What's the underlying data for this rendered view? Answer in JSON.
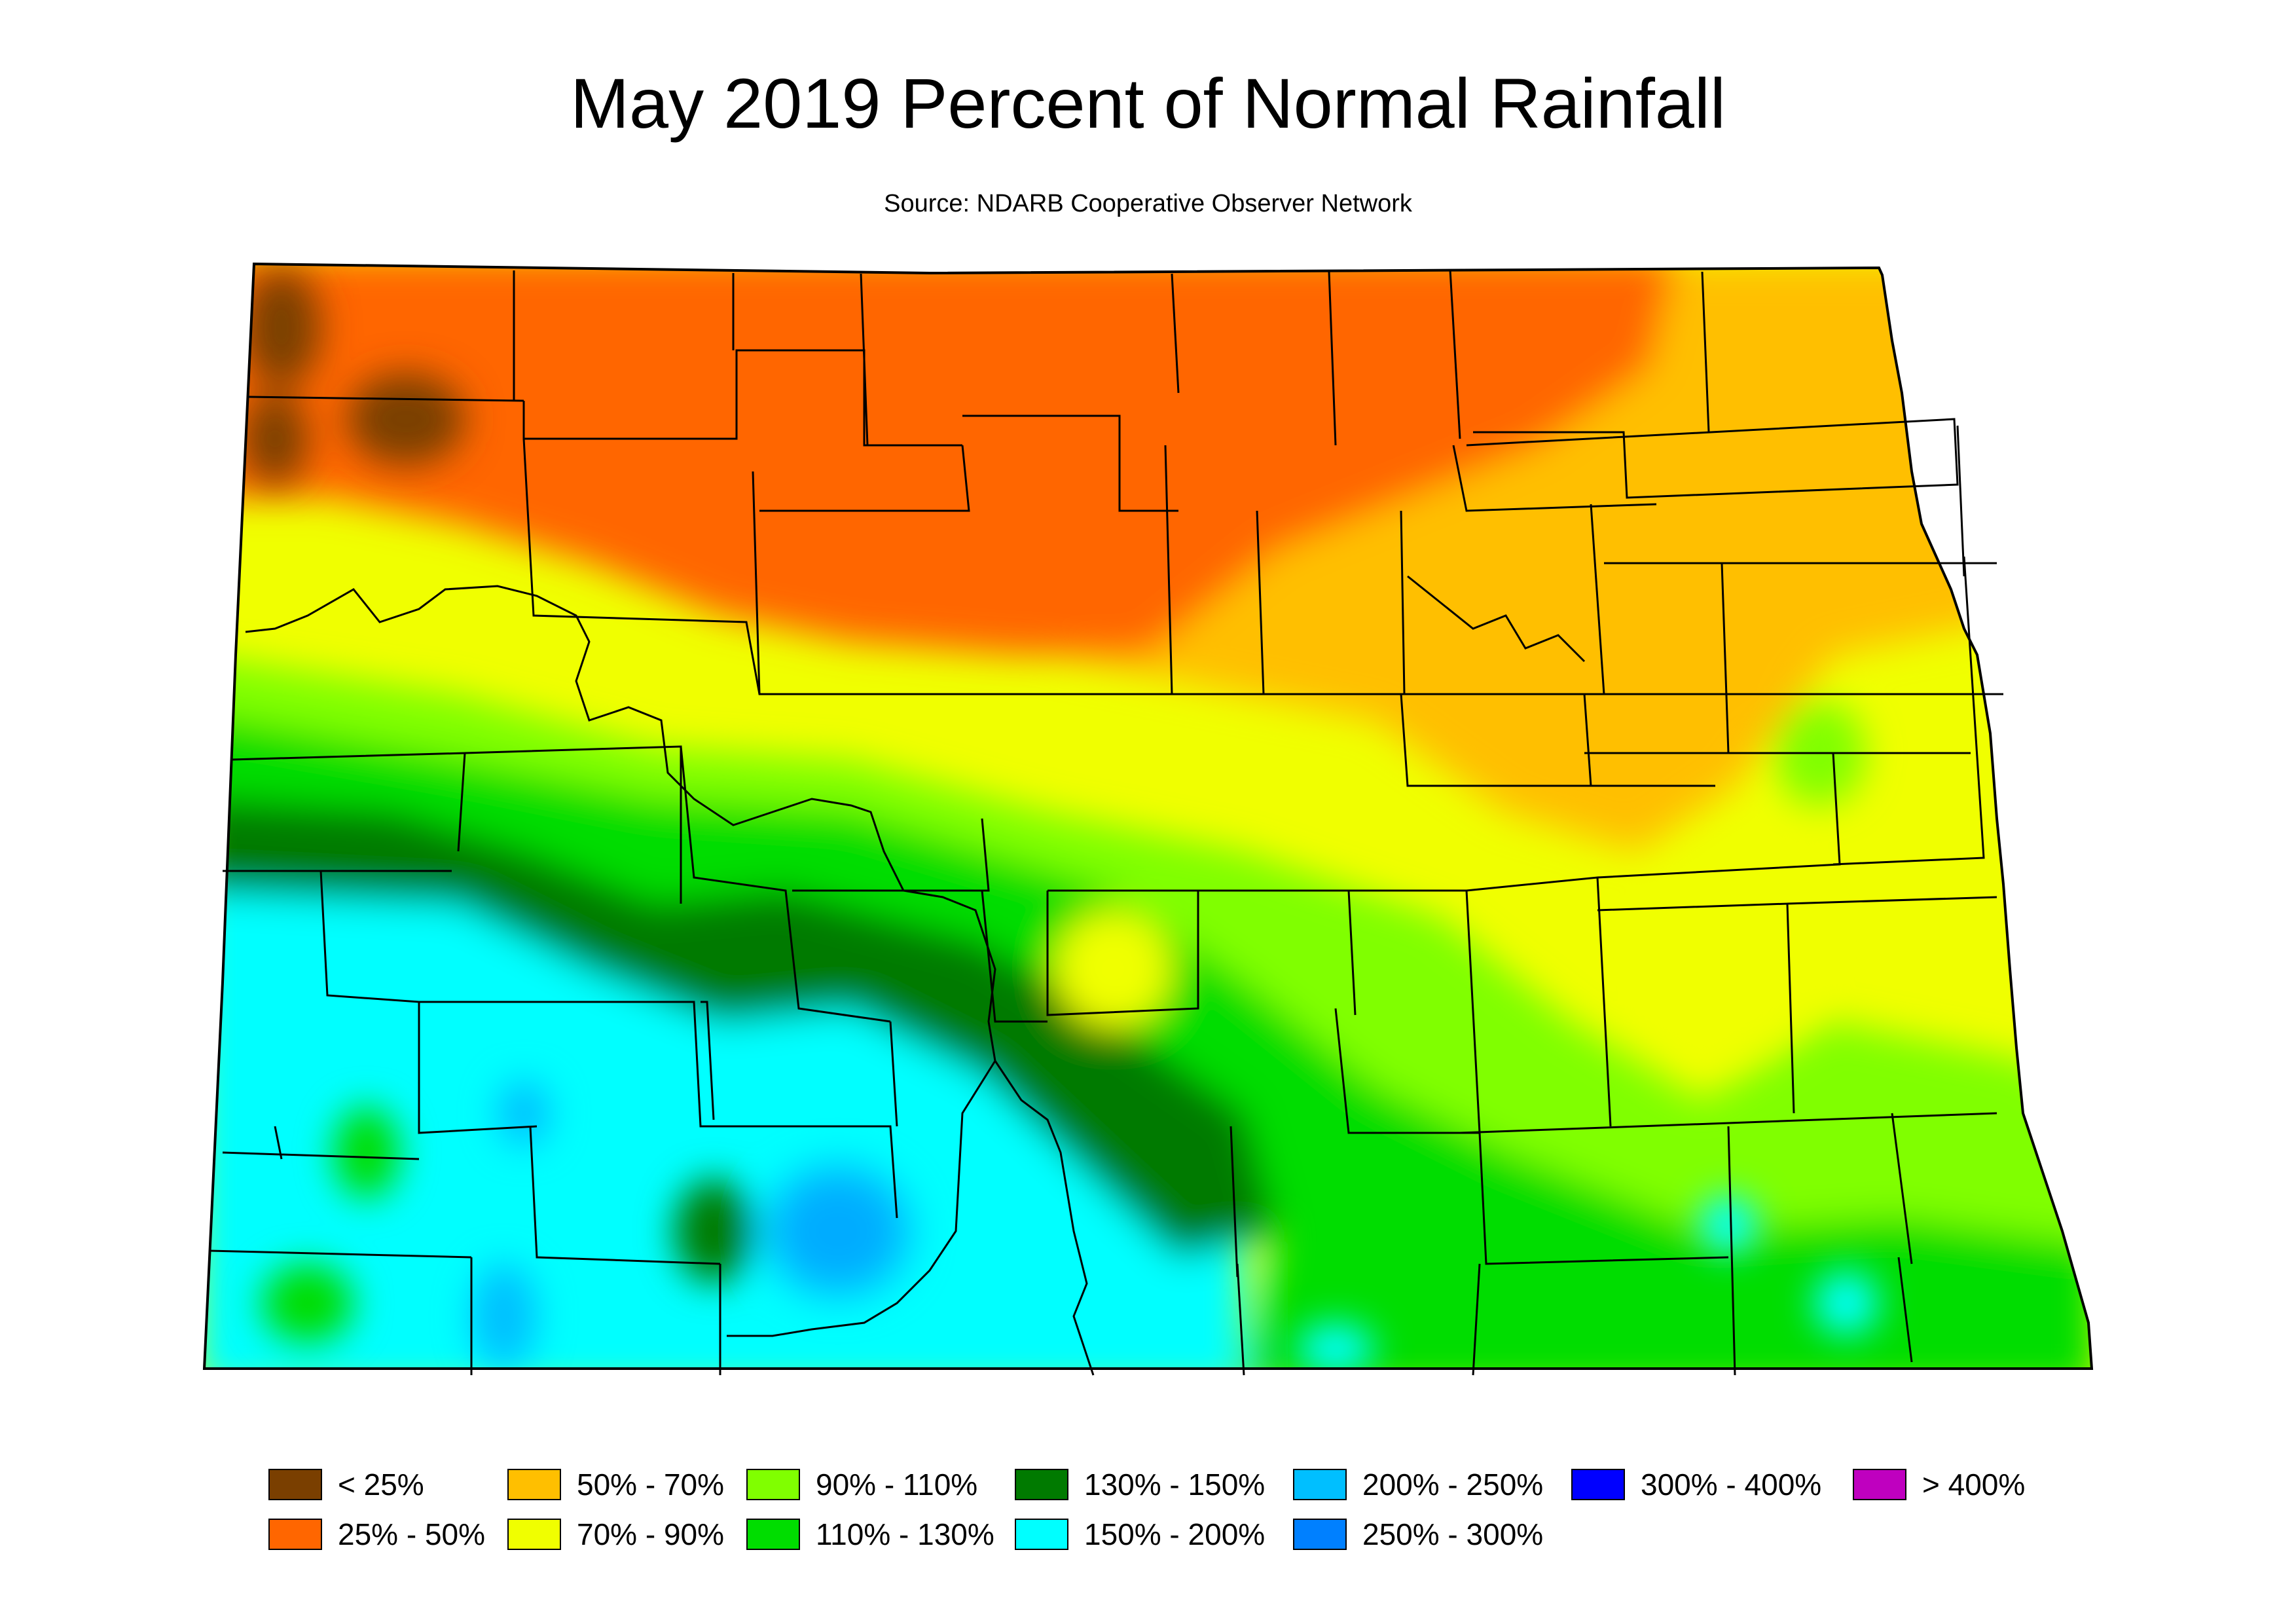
{
  "title": "May 2019 Percent of Normal Rainfall",
  "subtitle": "Source: NDARB Cooperative Observer Network",
  "legend": [
    {
      "label": "< 25%",
      "color": "#7a3f00"
    },
    {
      "label": "25% - 50%",
      "color": "#ff6600"
    },
    {
      "label": "50% - 70%",
      "color": "#ffbf00"
    },
    {
      "label": "70% - 90%",
      "color": "#f0ff00"
    },
    {
      "label": "90% - 110%",
      "color": "#80ff00"
    },
    {
      "label": "110% - 130%",
      "color": "#00dd00"
    },
    {
      "label": "130% - 150%",
      "color": "#007a00"
    },
    {
      "label": "150% - 200%",
      "color": "#00ffff"
    },
    {
      "label": "200% - 250%",
      "color": "#00bfff"
    },
    {
      "label": "250% - 300%",
      "color": "#0080ff"
    },
    {
      "label": "300% - 400%",
      "color": "#0000ff"
    },
    {
      "label": "> 400%",
      "color": "#bf00bf"
    }
  ]
}
